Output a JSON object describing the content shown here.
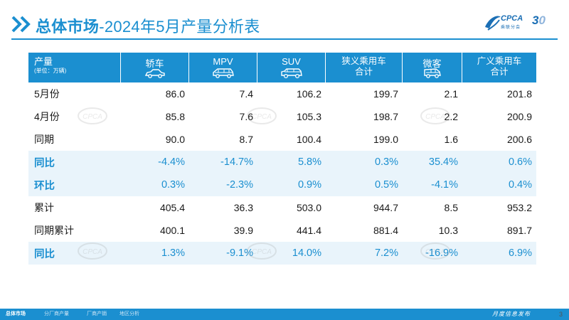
{
  "title": {
    "bold": "总体市场",
    "rest": "-2024年5月产量分析表"
  },
  "logo": {
    "text": "CPCA",
    "sub": "乘联分会",
    "num_main": "3",
    "num_zero": "0"
  },
  "table": {
    "corner": {
      "line1": "产量",
      "line2": "(单位：万辆)"
    },
    "columns": [
      {
        "label": "轿车",
        "icon": "sedan-icon"
      },
      {
        "label": "MPV",
        "icon": "mpv-icon"
      },
      {
        "label": "SUV",
        "icon": "suv-icon"
      },
      {
        "label1": "狭义乘用车",
        "label2": "合计"
      },
      {
        "label": "微客",
        "icon": "minivan-icon"
      },
      {
        "label1": "广义乘用车",
        "label2": "合计"
      }
    ],
    "rows": [
      {
        "label": "5月份",
        "type": "value",
        "values": [
          "86.0",
          "7.4",
          "106.2",
          "199.7",
          "2.1",
          "201.8"
        ]
      },
      {
        "label": "4月份",
        "type": "value",
        "values": [
          "85.8",
          "7.6",
          "105.3",
          "198.7",
          "2.2",
          "200.9"
        ]
      },
      {
        "label": "同期",
        "type": "value",
        "values": [
          "90.0",
          "8.7",
          "100.4",
          "199.0",
          "1.6",
          "200.6"
        ]
      },
      {
        "label": "同比",
        "type": "pct",
        "values": [
          "-4.4%",
          "-14.7%",
          "5.8%",
          "0.3%",
          "35.4%",
          "0.6%"
        ]
      },
      {
        "label": "环比",
        "type": "pct",
        "values": [
          "0.3%",
          "-2.3%",
          "0.9%",
          "0.5%",
          "-4.1%",
          "0.4%"
        ]
      },
      {
        "label": "累计",
        "type": "value",
        "values": [
          "405.4",
          "36.3",
          "503.0",
          "944.7",
          "8.5",
          "953.2"
        ]
      },
      {
        "label": "同期累计",
        "type": "value",
        "values": [
          "400.1",
          "39.9",
          "441.4",
          "881.4",
          "10.3",
          "891.7"
        ]
      },
      {
        "label": "同比",
        "type": "pct",
        "values": [
          "1.3%",
          "-9.1%",
          "14.0%",
          "7.2%",
          "-16.9%",
          "6.9%"
        ]
      }
    ]
  },
  "footer": {
    "tabs": [
      "总体市场",
      "分厂商产量",
      "厂商产销",
      "地区分析"
    ],
    "right": "月度信息发布",
    "page": "3"
  },
  "colors": {
    "accent": "#1b8fd0",
    "pct_row_bg": "#e9f4fb"
  }
}
